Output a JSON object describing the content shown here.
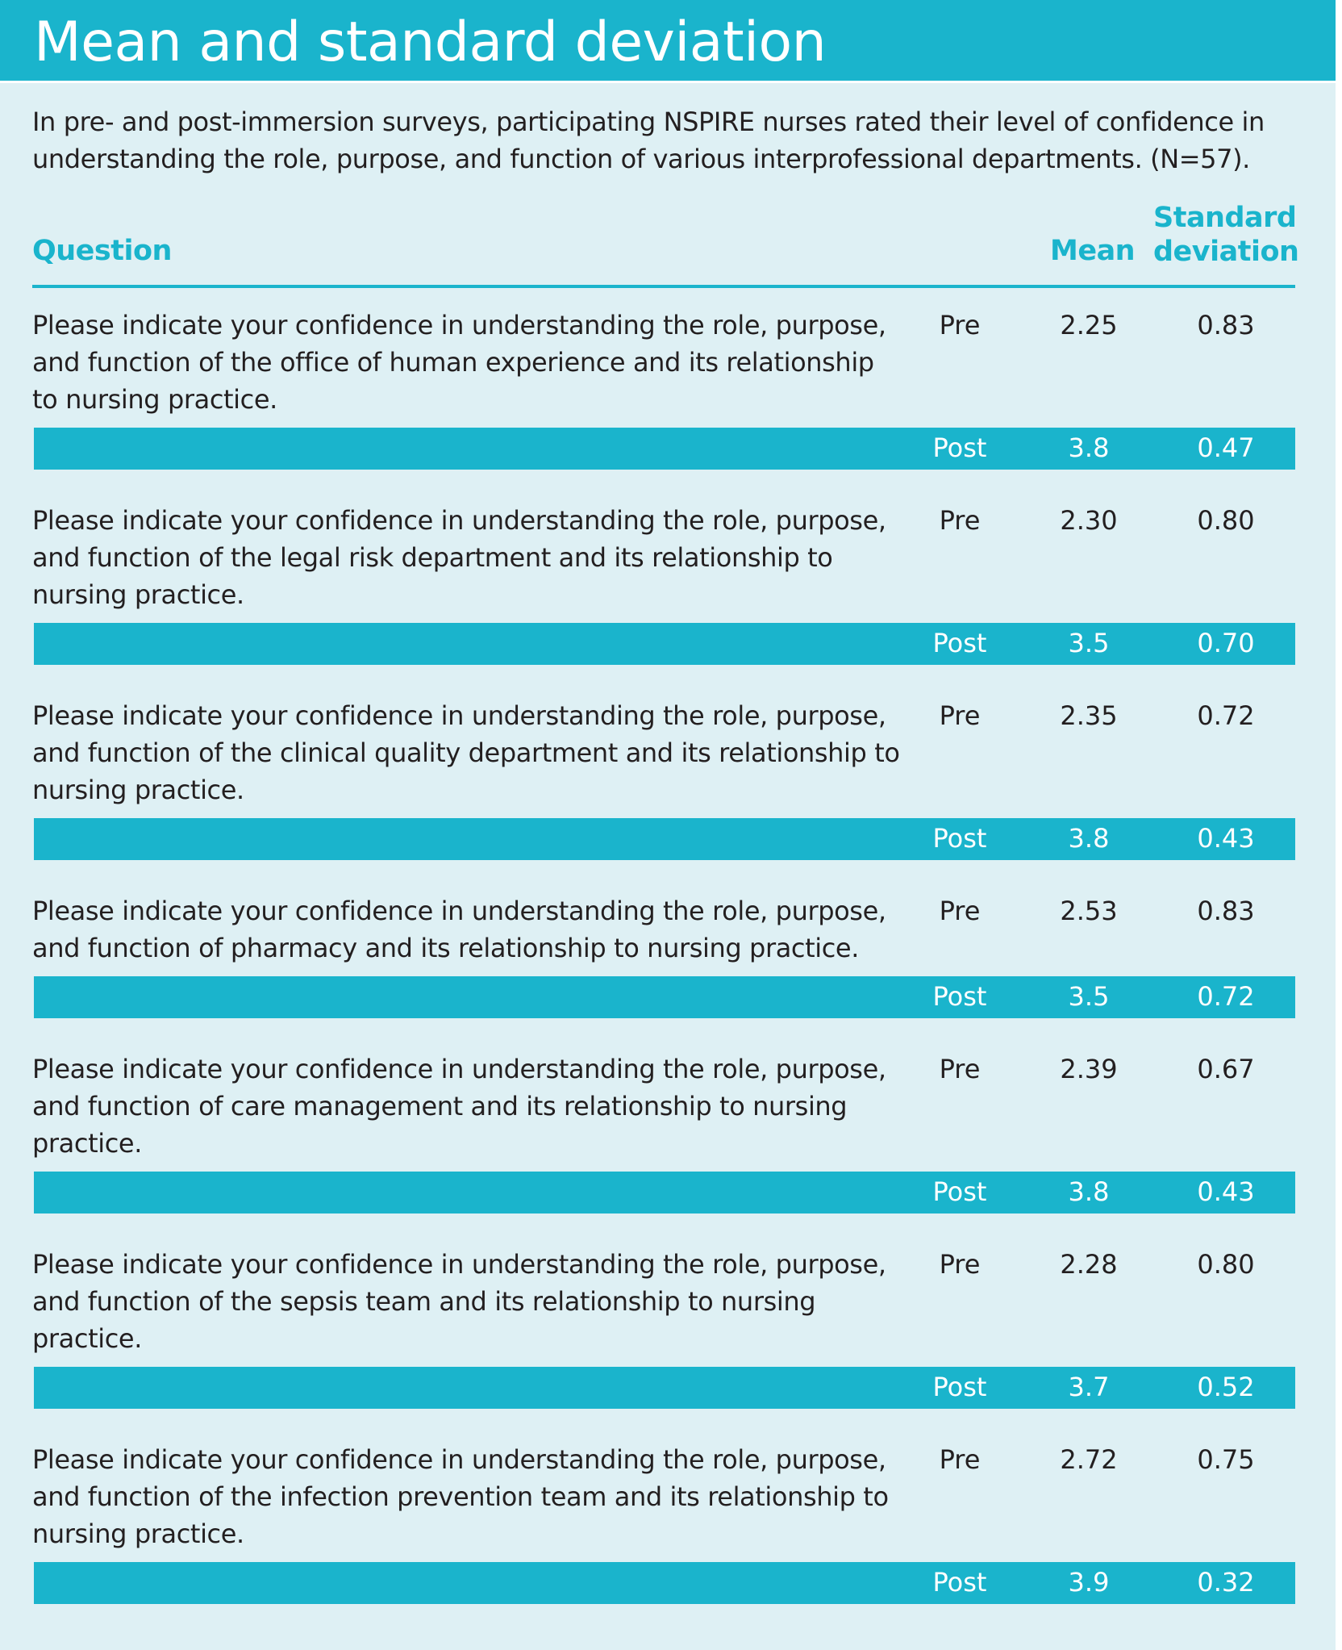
{
  "title": "Mean and standard deviation",
  "intro": "In pre- and post-immersion surveys, participating NSPIRE nurses rated their level of confidence in understanding the role, purpose, and function of various interprofessional departments. (N=57).",
  "headers": {
    "question": "Question",
    "mean": "Mean",
    "sd_line1": "Standard",
    "sd_line2": "deviation"
  },
  "rows": [
    {
      "question": "Please indicate your confidence in understanding the role, purpose, and function of the office of human experience and its relationship to nursing practice.",
      "pre": {
        "label": "Pre",
        "mean": "2.25",
        "sd": "0.83"
      },
      "post": {
        "label": "Post",
        "mean": "3.8",
        "sd": "0.47"
      }
    },
    {
      "question": "Please indicate your confidence in understanding the role, purpose, and function of the legal risk department and its relationship to nursing practice.",
      "pre": {
        "label": "Pre",
        "mean": "2.30",
        "sd": "0.80"
      },
      "post": {
        "label": "Post",
        "mean": "3.5",
        "sd": "0.70"
      }
    },
    {
      "question": "Please indicate your confidence in understanding the role, purpose, and function of the clinical quality department and its relationship to nursing practice.",
      "pre": {
        "label": "Pre",
        "mean": "2.35",
        "sd": "0.72"
      },
      "post": {
        "label": "Post",
        "mean": "3.8",
        "sd": "0.43"
      }
    },
    {
      "question": "Please indicate your confidence in understanding the role, purpose, and function of pharmacy and its relationship to nursing practice.",
      "pre": {
        "label": "Pre",
        "mean": "2.53",
        "sd": "0.83"
      },
      "post": {
        "label": "Post",
        "mean": "3.5",
        "sd": "0.72"
      }
    },
    {
      "question": "Please indicate your confidence in understanding the role, purpose, and function of care management and its relationship to nursing practice.",
      "pre": {
        "label": "Pre",
        "mean": "2.39",
        "sd": "0.67"
      },
      "post": {
        "label": "Post",
        "mean": "3.8",
        "sd": "0.43"
      }
    },
    {
      "question": "Please indicate your confidence in understanding the role, purpose, and function of the sepsis team and its relationship to nursing practice.",
      "pre": {
        "label": "Pre",
        "mean": "2.28",
        "sd": "0.80"
      },
      "post": {
        "label": "Post",
        "mean": "3.7",
        "sd": "0.52"
      }
    },
    {
      "question": "Please indicate your confidence in understanding the role, purpose, and function of the infection prevention team and its relationship to nursing practice.",
      "pre": {
        "label": "Pre",
        "mean": "2.72",
        "sd": "0.75"
      },
      "post": {
        "label": "Post",
        "mean": "3.9",
        "sd": "0.32"
      }
    }
  ]
}
